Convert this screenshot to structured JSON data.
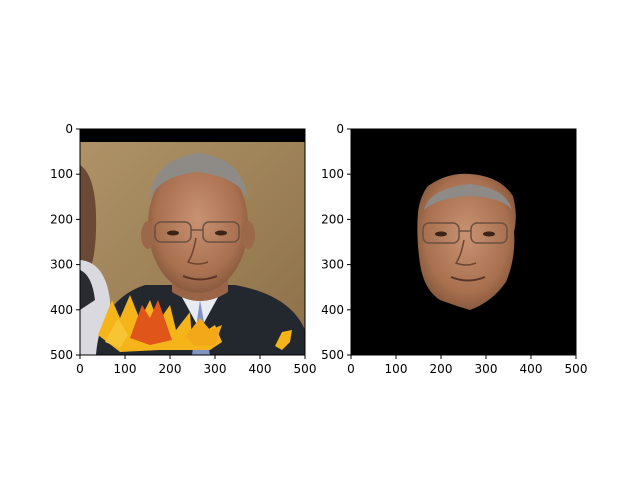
{
  "figure": {
    "panels": [
      {
        "id": "left",
        "description_kind": "photo",
        "x_ticks": [
          "0",
          "100",
          "200",
          "300",
          "400",
          "500"
        ],
        "y_ticks": [
          "0",
          "100",
          "200",
          "300",
          "400",
          "500"
        ]
      },
      {
        "id": "right",
        "description_kind": "masked-face",
        "x_ticks": [
          "0",
          "100",
          "200",
          "300",
          "400",
          "500"
        ],
        "y_ticks": [
          "0",
          "100",
          "200",
          "300",
          "400",
          "500"
        ]
      }
    ],
    "axis_range": [
      0,
      500
    ],
    "colors": {
      "frame": "#000000",
      "mask_bg": "#000000",
      "skin": "#b98463",
      "wall": "#a88a5e",
      "suit": "#23272e",
      "leaf_a": "#f4b41a",
      "leaf_b": "#e0561a"
    }
  }
}
